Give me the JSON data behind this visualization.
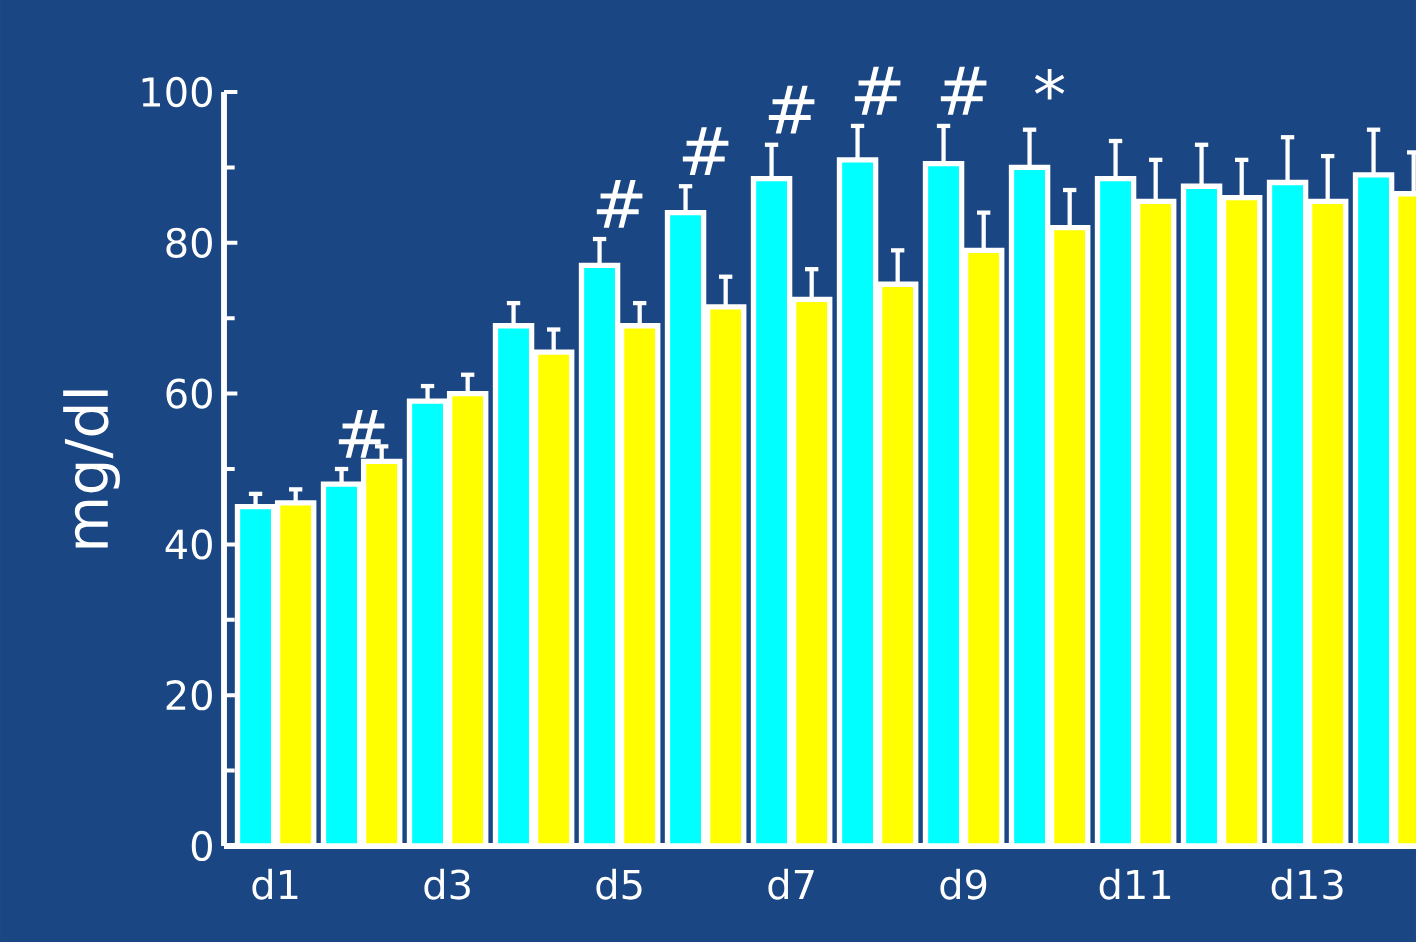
{
  "chart_data": {
    "type": "bar",
    "ylabel": "mg/dl",
    "categories": [
      "d1",
      null,
      "d3",
      null,
      "d5",
      null,
      "d7",
      null,
      "d9",
      null,
      "d11",
      null,
      "d13",
      null
    ],
    "series": [
      {
        "color": "#00ffff",
        "values": [
          45,
          48,
          59,
          69,
          77,
          84,
          88.5,
          91,
          90.5,
          90,
          88.5,
          87.5,
          88,
          89
        ],
        "errors": [
          1.7,
          2,
          2,
          3,
          3.5,
          3.5,
          4.5,
          4.5,
          5,
          5,
          5,
          5.5,
          6,
          6
        ],
        "value_labels": [
          null,
          "#",
          null,
          null,
          "#",
          "#",
          "#",
          "#",
          "#",
          "*",
          null,
          null,
          null,
          null
        ]
      },
      {
        "color": "#ffff00",
        "values": [
          45.5,
          51,
          60,
          65.5,
          69,
          71.5,
          72.5,
          74.5,
          79,
          82,
          85.5,
          86,
          85.5,
          86.5
        ],
        "errors": [
          1.8,
          2,
          2.5,
          3,
          3,
          4,
          4,
          4.5,
          5,
          5,
          5.5,
          5,
          6,
          5.5
        ]
      }
    ],
    "ylim": [
      0,
      100
    ],
    "yticks": [
      0,
      20,
      40,
      60,
      80,
      100
    ],
    "grid": false
  }
}
